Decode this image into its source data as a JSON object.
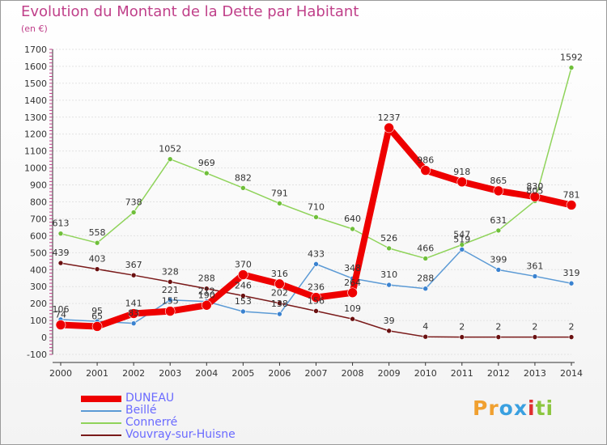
{
  "title": "Evolution du Montant de la Dette par Habitant",
  "unit": "(en €)",
  "logo": {
    "parts": [
      "Pr",
      "o",
      "x",
      "i",
      "ti"
    ],
    "colors": [
      "#f0a030",
      "#3aa0e0",
      "#3aa0e0",
      "#e03030",
      "#8cc63f"
    ]
  },
  "chart_data": {
    "type": "line",
    "x": [
      "2000",
      "2001",
      "2002",
      "2003",
      "2004",
      "2005",
      "2006",
      "2007",
      "2008",
      "2009",
      "2010",
      "2011",
      "2012",
      "2013",
      "2014"
    ],
    "ylim": [
      -100,
      1700
    ],
    "yticks": [
      -100,
      0,
      100,
      200,
      300,
      400,
      500,
      600,
      700,
      800,
      900,
      1000,
      1100,
      1200,
      1300,
      1400,
      1500,
      1600,
      1700
    ],
    "grid": true,
    "legend_position": "bottom-left",
    "series": [
      {
        "name": "Vouvray-sur-Huisne",
        "color": "#7a1a1a",
        "marker": "#6a1010",
        "width": 1.5,
        "radius": 3,
        "values": [
          439,
          403,
          367,
          328,
          288,
          246,
          202,
          156,
          109,
          39,
          4,
          2,
          2,
          2,
          2
        ],
        "labels": [
          "439",
          "403",
          "367",
          "328",
          "288",
          "246",
          "202",
          "156",
          "109",
          "39",
          "4",
          "2",
          "2",
          "2",
          "2"
        ]
      },
      {
        "name": "Connerré",
        "color": "#8fd35a",
        "marker": "#6fbf3a",
        "width": 1.5,
        "radius": 3,
        "values": [
          613,
          558,
          738,
          1052,
          969,
          882,
          791,
          710,
          640,
          526,
          466,
          547,
          631,
          805,
          1592
        ],
        "labels": [
          "613",
          "558",
          "738",
          "1052",
          "969",
          "882",
          "791",
          "710",
          "640",
          "526",
          "466",
          "547",
          "631",
          "805",
          "1592"
        ]
      },
      {
        "name": "Beillé",
        "color": "#5b9ad5",
        "marker": "#3a82d0",
        "width": 1.5,
        "radius": 3,
        "values": [
          106,
          95,
          83,
          221,
          212,
          153,
          138,
          433,
          348,
          310,
          288,
          519,
          399,
          361,
          319
        ],
        "labels": [
          "106",
          "95",
          "83",
          "221",
          "212",
          "153",
          "138",
          "433",
          "348",
          "310",
          "288",
          "519",
          "399",
          "361",
          "319"
        ]
      },
      {
        "name": "DUNEAU",
        "color": "#ee0000",
        "marker": "#ee0000",
        "width": 8,
        "radius": 6,
        "values": [
          74,
          65,
          141,
          155,
          190,
          370,
          316,
          236,
          264,
          1237,
          986,
          918,
          865,
          830,
          781
        ],
        "labels": [
          "74",
          "65",
          "141",
          "155",
          "190",
          "370",
          "316",
          "236",
          "264",
          "1237",
          "986",
          "918",
          "865",
          "830",
          "781"
        ]
      }
    ]
  },
  "legend": [
    {
      "name": "DUNEAU",
      "color": "#ee0000",
      "thickness": 8
    },
    {
      "name": "Beillé",
      "color": "#5b9ad5",
      "thickness": 2
    },
    {
      "name": "Connerré",
      "color": "#8fd35a",
      "thickness": 2
    },
    {
      "name": "Vouvray-sur-Huisne",
      "color": "#7a1a1a",
      "thickness": 2
    }
  ]
}
